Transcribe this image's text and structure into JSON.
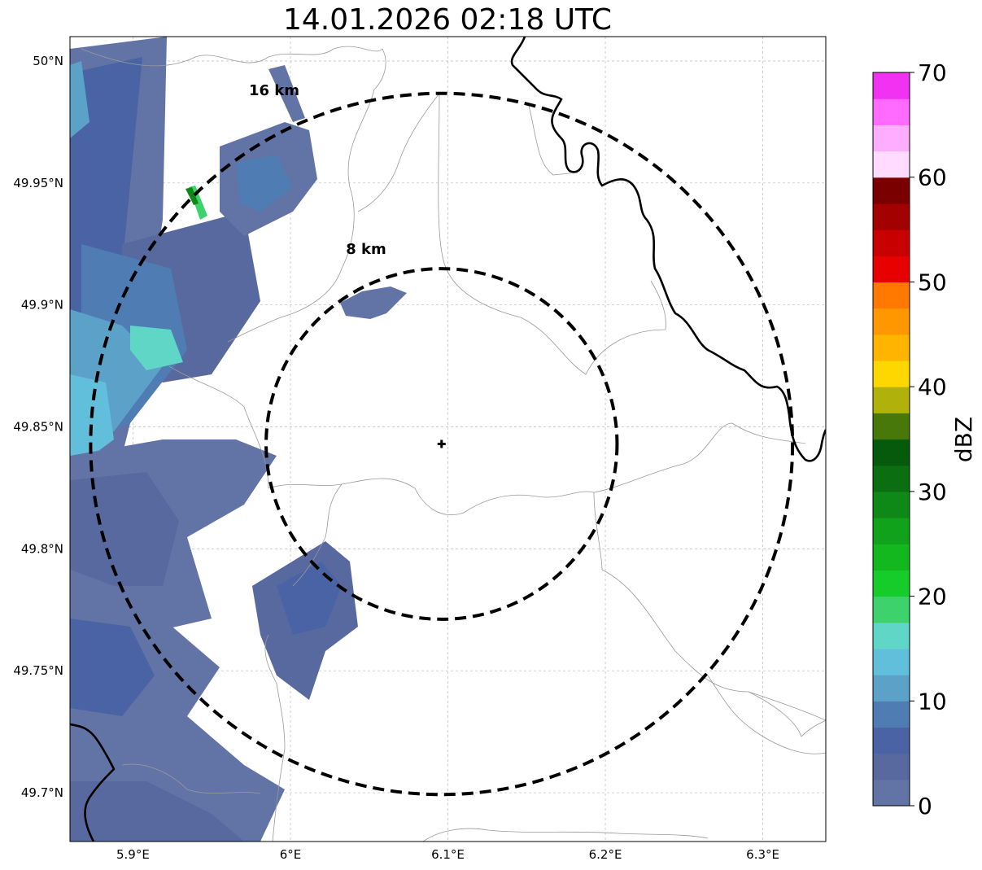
{
  "title": "14.01.2026 02:18 UTC",
  "map": {
    "lon_range": [
      5.86,
      6.34
    ],
    "lat_range": [
      49.68,
      50.01
    ],
    "center": {
      "lon": 6.096,
      "lat": 49.843
    },
    "rings": [
      {
        "label": "8 km",
        "radius_km": 8
      },
      {
        "label": "16 km",
        "radius_km": 16
      }
    ],
    "lon_ticks": [
      {
        "value": 5.9,
        "label": "5.9°E"
      },
      {
        "value": 6.0,
        "label": "6°E"
      },
      {
        "value": 6.1,
        "label": "6.1°E"
      },
      {
        "value": 6.2,
        "label": "6.2°E"
      },
      {
        "value": 6.3,
        "label": "6.3°E"
      }
    ],
    "lat_ticks": [
      {
        "value": 50.0,
        "label": "50°N"
      },
      {
        "value": 49.95,
        "label": "49.95°N"
      },
      {
        "value": 49.9,
        "label": "49.9°N"
      },
      {
        "value": 49.85,
        "label": "49.85°N"
      },
      {
        "value": 49.8,
        "label": "49.8°N"
      },
      {
        "value": 49.75,
        "label": "49.75°N"
      },
      {
        "value": 49.7,
        "label": "49.7°N"
      }
    ],
    "gridlines": true
  },
  "colorbar": {
    "label": "dBZ",
    "min": 0,
    "max": 70,
    "tick_labels": [
      "0",
      "10",
      "20",
      "30",
      "40",
      "50",
      "60",
      "70"
    ],
    "colors": [
      "#6273a6",
      "#5869a0",
      "#4a63a4",
      "#4f7db3",
      "#5ba1c8",
      "#62bfdc",
      "#5fd6c6",
      "#3dd26b",
      "#16cc2a",
      "#12b81d",
      "#10a21a",
      "#0e8816",
      "#0b6f11",
      "#065a0b",
      "#49780a",
      "#b0b10a",
      "#ffd700",
      "#ffb400",
      "#ff9700",
      "#ff7800",
      "#e60000",
      "#c80000",
      "#a30000",
      "#7a0000",
      "#ffdcff",
      "#ffadff",
      "#ff6aff",
      "#f232f2"
    ]
  }
}
